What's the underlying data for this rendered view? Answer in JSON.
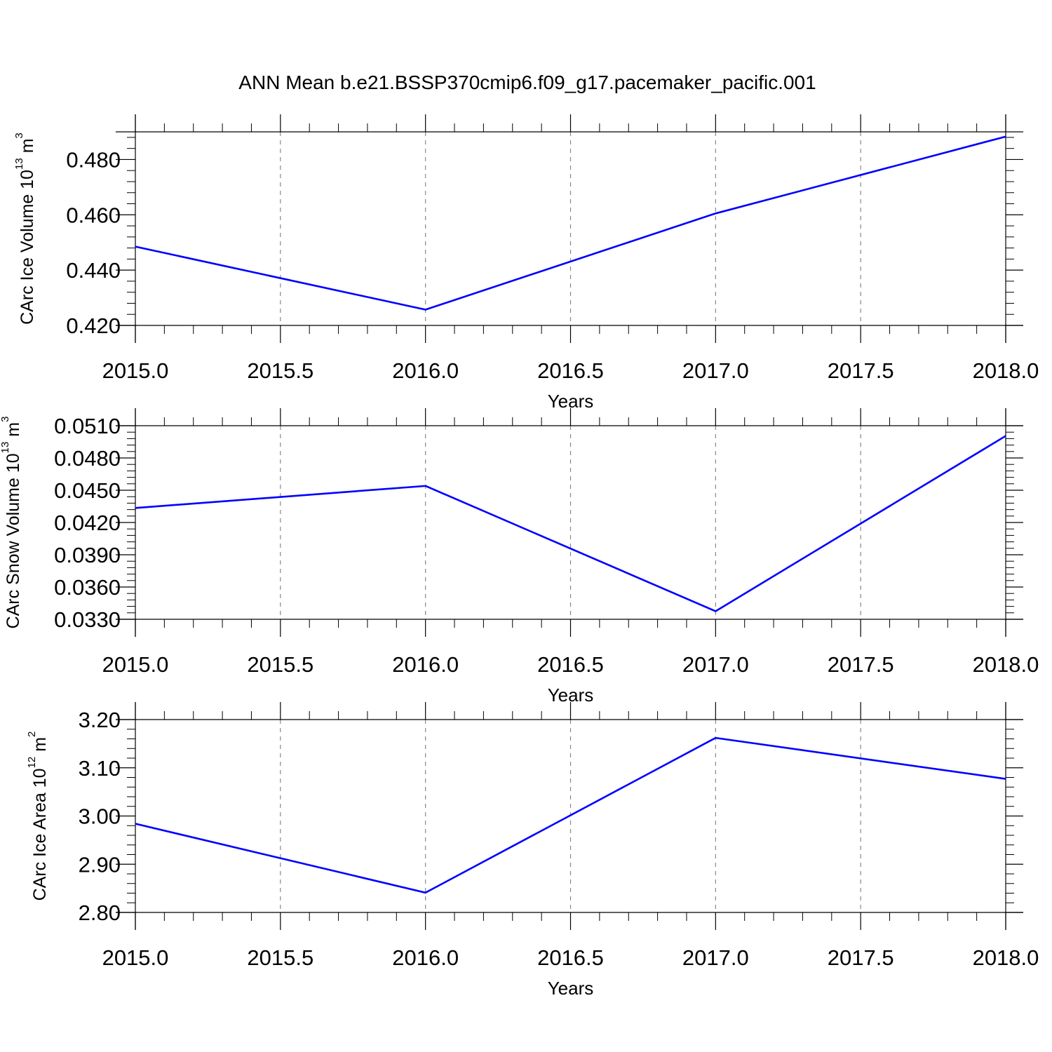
{
  "title": "ANN Mean b.e21.BSSP370cmip6.f09_g17.pacemaker_pacific.001",
  "chart_data": [
    {
      "type": "line",
      "title": "",
      "xlabel": "Years",
      "ylabel": {
        "prefix": "CArc Ice Volume 10",
        "exponent": "13",
        "unit": " m",
        "unit_exponent": "3"
      },
      "x": [
        2015,
        2016,
        2017,
        2018
      ],
      "series": [
        {
          "values": [
            0.4485,
            0.4257,
            0.4605,
            0.4883
          ]
        }
      ],
      "xlim": [
        2015.0,
        2018.0
      ],
      "ylim": [
        0.42,
        0.49
      ],
      "xticks": [
        "2015.0",
        "2015.5",
        "2016.0",
        "2016.5",
        "2017.0",
        "2017.5",
        "2018.0"
      ],
      "yticks": [
        "0.420",
        "0.440",
        "0.460",
        "0.480"
      ],
      "grid": "vertical dashed",
      "line_color": "#0000ff"
    },
    {
      "type": "line",
      "title": "",
      "xlabel": "Years",
      "ylabel": {
        "prefix": "CArc Snow Volume 10",
        "exponent": "13",
        "unit": " m",
        "unit_exponent": "3"
      },
      "x": [
        2015,
        2016,
        2017,
        2018
      ],
      "series": [
        {
          "values": [
            0.04335,
            0.0454,
            0.03375,
            0.05005
          ]
        }
      ],
      "xlim": [
        2015.0,
        2018.0
      ],
      "ylim": [
        0.033,
        0.051
      ],
      "xticks": [
        "2015.0",
        "2015.5",
        "2016.0",
        "2016.5",
        "2017.0",
        "2017.5",
        "2018.0"
      ],
      "yticks": [
        "0.0330",
        "0.0360",
        "0.0390",
        "0.0420",
        "0.0450",
        "0.0480",
        "0.0510"
      ],
      "grid": "vertical dashed",
      "line_color": "#0000ff"
    },
    {
      "type": "line",
      "title": "",
      "xlabel": "Years",
      "ylabel": {
        "prefix": "CArc Ice Area 10",
        "exponent": "12",
        "unit": " m",
        "unit_exponent": "2"
      },
      "x": [
        2015,
        2016,
        2017,
        2018
      ],
      "series": [
        {
          "values": [
            2.984,
            2.841,
            3.162,
            3.077
          ]
        }
      ],
      "xlim": [
        2015.0,
        2018.0
      ],
      "ylim": [
        2.8,
        3.2
      ],
      "xticks": [
        "2015.0",
        "2015.5",
        "2016.0",
        "2016.5",
        "2017.0",
        "2017.5",
        "2018.0"
      ],
      "yticks": [
        "2.80",
        "2.90",
        "3.00",
        "3.10",
        "3.20"
      ],
      "grid": "vertical dashed",
      "line_color": "#0000ff"
    }
  ]
}
